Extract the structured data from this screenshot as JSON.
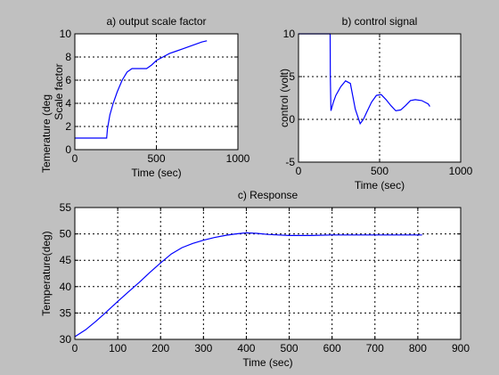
{
  "colors": {
    "figure_bg": "#c0c0c0",
    "axes_bg": "#ffffff",
    "line": "#0000ff",
    "grid": "#000000"
  },
  "chart_data": [
    {
      "type": "line",
      "title": "a) output scale factor",
      "xlabel": "Time (sec)",
      "ylabel": "Scale factor",
      "xlim": [
        0,
        1000
      ],
      "ylim": [
        0,
        10
      ],
      "xticks": [
        0,
        500,
        1000
      ],
      "yticks": [
        0,
        2,
        4,
        6,
        8,
        10
      ],
      "grid": true,
      "series": [
        {
          "x": [
            0,
            195,
            200,
            215,
            235,
            260,
            290,
            320,
            350,
            380,
            410,
            440,
            470,
            500,
            540,
            580,
            620,
            660,
            700,
            740,
            780,
            810
          ],
          "y": [
            1,
            1,
            1.8,
            3.0,
            4.0,
            5.0,
            6.0,
            6.7,
            7.0,
            7.0,
            7.0,
            7.0,
            7.3,
            7.7,
            8.0,
            8.3,
            8.5,
            8.7,
            8.9,
            9.1,
            9.3,
            9.4
          ]
        }
      ]
    },
    {
      "type": "line",
      "title": "b) control signal",
      "xlabel": "Time (sec)",
      "ylabel": "control (volt)",
      "xlim": [
        0,
        1000
      ],
      "ylim": [
        -5,
        10
      ],
      "xticks": [
        0,
        500,
        1000
      ],
      "yticks": [
        -5,
        0,
        5,
        10
      ],
      "grid": true,
      "series": [
        {
          "x": [
            0,
            195,
            196,
            200,
            215,
            230,
            260,
            290,
            320,
            350,
            380,
            400,
            420,
            450,
            480,
            510,
            540,
            570,
            600,
            630,
            660,
            690,
            720,
            760,
            800,
            810
          ],
          "y": [
            10,
            10,
            5.0,
            1.0,
            2.0,
            2.8,
            3.8,
            4.5,
            4.2,
            1.2,
            -0.5,
            0,
            0.8,
            2.0,
            2.8,
            2.9,
            2.3,
            1.6,
            1.0,
            1.1,
            1.6,
            2.2,
            2.3,
            2.2,
            1.8,
            1.5
          ]
        }
      ]
    },
    {
      "type": "line",
      "title": "c) Response",
      "xlabel": "Time (sec)",
      "ylabel": "Temperature(deg)",
      "xlim": [
        0,
        900
      ],
      "ylim": [
        30,
        55
      ],
      "xticks": [
        0,
        100,
        200,
        300,
        400,
        500,
        600,
        700,
        800,
        900
      ],
      "yticks": [
        30,
        35,
        40,
        45,
        50,
        55
      ],
      "grid": true,
      "series": [
        {
          "x": [
            0,
            25,
            50,
            75,
            100,
            125,
            150,
            175,
            200,
            225,
            250,
            275,
            300,
            325,
            350,
            375,
            400,
            425,
            450,
            475,
            500,
            550,
            600,
            650,
            700,
            750,
            800,
            810
          ],
          "y": [
            30.5,
            31.8,
            33.5,
            35.3,
            37.2,
            39.0,
            40.8,
            42.7,
            44.5,
            46.2,
            47.4,
            48.2,
            48.8,
            49.3,
            49.7,
            50.0,
            50.2,
            50.1,
            49.9,
            49.8,
            49.7,
            49.7,
            49.8,
            49.8,
            49.8,
            49.8,
            49.8,
            49.8
          ]
        }
      ]
    }
  ],
  "stray_label": {
    "text": "Temerature (deg"
  }
}
